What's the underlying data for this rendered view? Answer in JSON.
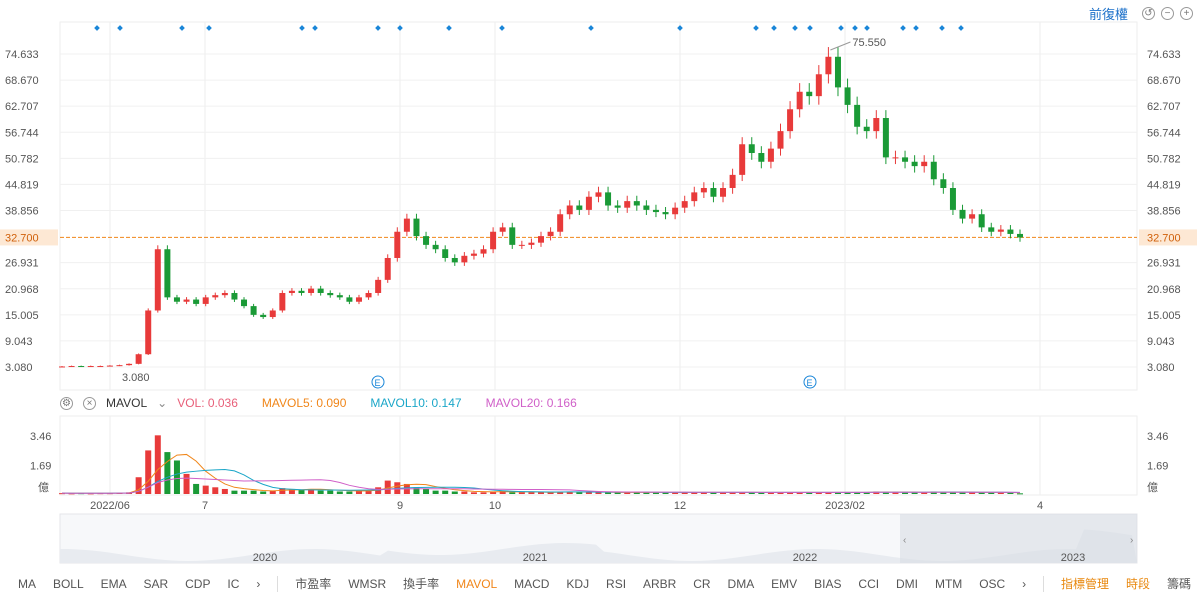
{
  "header": {
    "adjust_label": "前復權",
    "icons": [
      "undo-icon",
      "zoom-out-icon",
      "zoom-in-icon"
    ]
  },
  "chart_data": {
    "type": "candlestick",
    "price_ticks": [
      "74.633",
      "68.670",
      "62.707",
      "56.744",
      "50.782",
      "44.819",
      "38.856",
      "32.700",
      "26.931",
      "20.968",
      "15.005",
      "9.043",
      "3.080"
    ],
    "ylim": [
      3.08,
      74.633
    ],
    "current_price": 32.7,
    "high_label": "75.550",
    "low_label": "3.080",
    "closes": [
      3.2,
      3.3,
      3.2,
      3.3,
      3.3,
      3.4,
      3.5,
      3.8,
      6,
      16,
      30,
      19,
      18,
      18.5,
      17.5,
      19,
      19.5,
      20,
      18.5,
      17,
      15,
      14.5,
      16,
      20,
      20.5,
      20,
      21,
      20,
      19.5,
      19,
      18,
      19,
      20,
      23,
      28,
      34,
      37,
      33,
      31,
      30,
      28,
      27,
      28.5,
      29,
      30,
      34,
      35,
      31,
      31,
      31.5,
      33,
      34,
      38,
      40,
      39,
      42,
      43,
      40,
      39.5,
      41,
      40,
      39,
      38.5,
      38,
      39.5,
      41,
      43,
      44,
      42,
      44,
      47,
      54,
      52,
      50,
      53,
      57,
      62,
      66,
      65,
      70,
      74,
      67,
      63,
      58,
      57,
      60,
      51,
      51,
      50,
      49,
      50,
      46,
      44,
      39,
      37,
      38,
      35,
      34,
      34.5,
      33.5,
      32.7
    ],
    "volume": {
      "unit": "億",
      "ticks": [
        "3.46",
        "1.69"
      ],
      "ylim": [
        0,
        3.6
      ],
      "values": [
        0.05,
        0.04,
        0.05,
        0.04,
        0.05,
        0.05,
        0.06,
        0.1,
        1.0,
        2.6,
        3.5,
        2.5,
        2.0,
        1.2,
        0.6,
        0.5,
        0.4,
        0.3,
        0.2,
        0.2,
        0.2,
        0.15,
        0.2,
        0.35,
        0.3,
        0.25,
        0.3,
        0.2,
        0.2,
        0.15,
        0.15,
        0.2,
        0.25,
        0.4,
        0.8,
        0.7,
        0.6,
        0.4,
        0.3,
        0.2,
        0.2,
        0.15,
        0.15,
        0.1,
        0.1,
        0.15,
        0.2,
        0.1,
        0.1,
        0.1,
        0.1,
        0.1,
        0.15,
        0.15,
        0.1,
        0.1,
        0.1,
        0.1,
        0.1,
        0.1,
        0.1,
        0.1,
        0.1,
        0.1,
        0.1,
        0.1,
        0.1,
        0.1,
        0.1,
        0.1,
        0.1,
        0.1,
        0.1,
        0.1,
        0.1,
        0.1,
        0.1,
        0.1,
        0.1,
        0.1,
        0.1,
        0.1,
        0.1,
        0.1,
        0.1,
        0.15,
        0.1,
        0.1,
        0.1,
        0.1,
        0.1,
        0.15,
        0.1,
        0.1,
        0.1,
        0.1,
        0.1,
        0.1,
        0.08,
        0.06,
        0.04
      ]
    },
    "x_ticks": [
      "2022/06",
      "7",
      "9",
      "10",
      "12",
      "2023/02",
      "4"
    ],
    "navigator_labels": [
      "2020",
      "2021",
      "2022",
      "2023"
    ],
    "colors": {
      "up": "#e83a3a",
      "down": "#1a9a36",
      "current": "#f0861a",
      "marker": "#1a86d8"
    }
  },
  "indicator": {
    "name": "MAVOL",
    "vol": "VOL: 0.036",
    "mavol5": "MAVOL5: 0.090",
    "mavol10": "MAVOL10: 0.147",
    "mavol20": "MAVOL20: 0.166"
  },
  "tabs": [
    "MA",
    "BOLL",
    "EMA",
    "SAR",
    "CDP",
    "IC",
    "市盈率",
    "WMSR",
    "換手率",
    "MAVOL",
    "MACD",
    "KDJ",
    "RSI",
    "ARBR",
    "CR",
    "DMA",
    "EMV",
    "BIAS",
    "CCI",
    "DMI",
    "MTM",
    "OSC"
  ],
  "tabs_right": {
    "manage": "指標管理",
    "period": "時段",
    "chips": "籌碼"
  }
}
